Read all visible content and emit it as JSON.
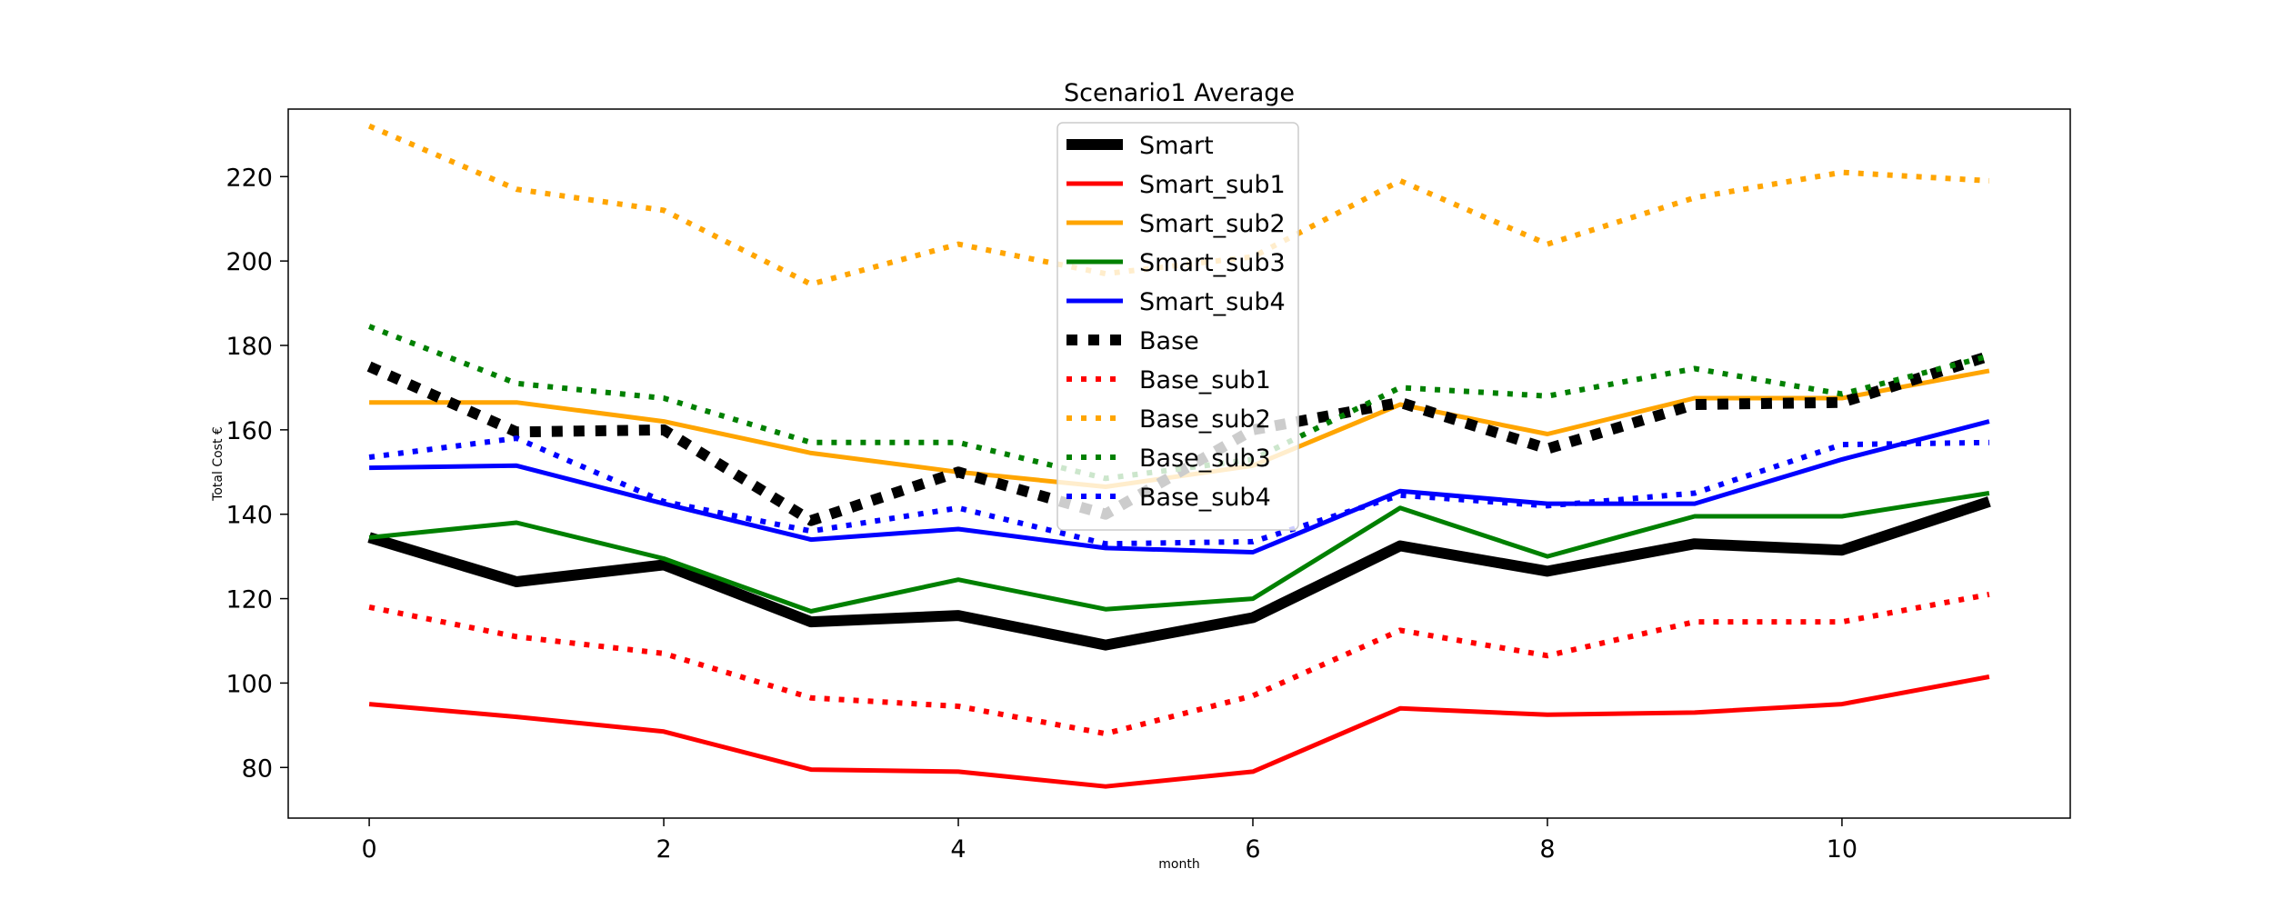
{
  "chart_data": {
    "type": "line",
    "title": "Scenario1 Average",
    "xlabel": "month",
    "ylabel": "Total Cost €",
    "xlim": [
      -0.55,
      11.55
    ],
    "ylim": [
      68,
      236
    ],
    "x_ticks": [
      0,
      2,
      4,
      6,
      8,
      10
    ],
    "y_ticks": [
      80,
      100,
      120,
      140,
      160,
      180,
      200,
      220
    ],
    "grid": false,
    "legend_position": "upper-center",
    "x": [
      0,
      1,
      2,
      3,
      4,
      5,
      6,
      7,
      8,
      9,
      10,
      11
    ],
    "series": [
      {
        "name": "Smart",
        "color": "#000000",
        "style": "solid",
        "width": "thick",
        "values": [
          134.5,
          124,
          128,
          114.5,
          116,
          109,
          115.5,
          132.5,
          126.5,
          133,
          131.5,
          143
        ]
      },
      {
        "name": "Smart_sub1",
        "color": "#ff0000",
        "style": "solid",
        "width": "normal",
        "values": [
          95,
          92,
          88.5,
          79.5,
          79,
          75.5,
          79,
          94,
          92.5,
          93,
          95,
          101.5
        ]
      },
      {
        "name": "Smart_sub2",
        "color": "#ffa500",
        "style": "solid",
        "width": "normal",
        "values": [
          166.5,
          166.5,
          162,
          154.5,
          150,
          146.5,
          151.5,
          166,
          159,
          167.5,
          167.5,
          174
        ]
      },
      {
        "name": "Smart_sub3",
        "color": "#008000",
        "style": "solid",
        "width": "normal",
        "values": [
          134.5,
          138,
          129.5,
          117,
          124.5,
          117.5,
          120,
          141.5,
          130,
          139.5,
          139.5,
          145
        ]
      },
      {
        "name": "Smart_sub4",
        "color": "#0000ff",
        "style": "solid",
        "width": "normal",
        "values": [
          151,
          151.5,
          142.5,
          134,
          136.5,
          132,
          131,
          145.5,
          142.5,
          142.5,
          153,
          162
        ]
      },
      {
        "name": "Base",
        "color": "#000000",
        "style": "dotted",
        "width": "thick",
        "values": [
          175,
          159.5,
          160,
          138.5,
          150,
          140,
          160,
          166.5,
          155.5,
          166,
          166.5,
          177.5
        ]
      },
      {
        "name": "Base_sub1",
        "color": "#ff0000",
        "style": "dotted",
        "width": "normal",
        "values": [
          118,
          111,
          107,
          96.5,
          94.5,
          88,
          97,
          112.5,
          106.5,
          114.5,
          114.5,
          121
        ]
      },
      {
        "name": "Base_sub2",
        "color": "#ffa500",
        "style": "dotted",
        "width": "normal",
        "values": [
          232,
          217,
          212,
          194.5,
          204,
          197,
          201,
          219,
          204,
          215,
          221,
          219
        ]
      },
      {
        "name": "Base_sub3",
        "color": "#008000",
        "style": "dotted",
        "width": "normal",
        "values": [
          184.5,
          171,
          167.5,
          157,
          157,
          148.5,
          153,
          170,
          168,
          174.5,
          168.5,
          177.5
        ]
      },
      {
        "name": "Base_sub4",
        "color": "#0000ff",
        "style": "dotted",
        "width": "normal",
        "values": [
          153.5,
          158,
          143,
          136,
          141.5,
          133,
          133.5,
          144.5,
          142,
          145,
          156.5,
          157
        ]
      }
    ]
  }
}
